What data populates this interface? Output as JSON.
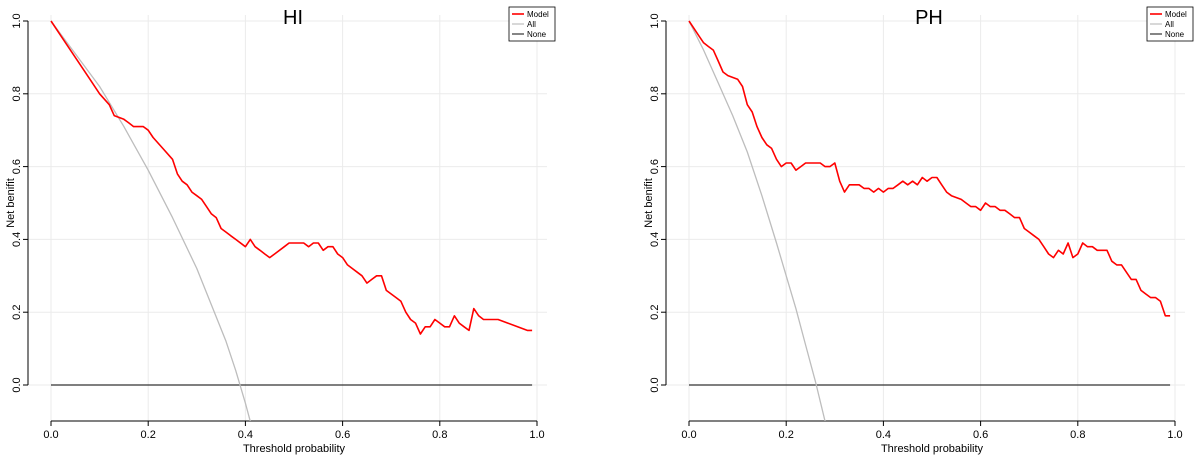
{
  "chart_data": [
    {
      "type": "line",
      "title": "HI",
      "xlabel": "Threshold probability",
      "ylabel": "Net benifit",
      "xlim": [
        0,
        1
      ],
      "ylim": [
        -0.05,
        1.0
      ],
      "xticks": [
        "0.0",
        "0.2",
        "0.4",
        "0.6",
        "0.8",
        "1.0"
      ],
      "yticks": [
        "0.0",
        "0.2",
        "0.4",
        "0.6",
        "0.8",
        "1.0"
      ],
      "grid": true,
      "legend": "top-right",
      "colors": {
        "Model": "#ff0000",
        "All": "#bdbdbd",
        "None": "#333333"
      },
      "series": [
        {
          "name": "Model",
          "x": [
            0.0,
            0.02,
            0.04,
            0.06,
            0.08,
            0.1,
            0.12,
            0.13,
            0.15,
            0.16,
            0.17,
            0.19,
            0.2,
            0.21,
            0.23,
            0.25,
            0.26,
            0.27,
            0.28,
            0.29,
            0.3,
            0.31,
            0.32,
            0.33,
            0.34,
            0.35,
            0.36,
            0.37,
            0.38,
            0.4,
            0.41,
            0.42,
            0.43,
            0.44,
            0.45,
            0.46,
            0.48,
            0.49,
            0.5,
            0.52,
            0.53,
            0.54,
            0.55,
            0.56,
            0.57,
            0.58,
            0.59,
            0.6,
            0.61,
            0.62,
            0.63,
            0.64,
            0.65,
            0.66,
            0.67,
            0.68,
            0.69,
            0.7,
            0.71,
            0.72,
            0.73,
            0.74,
            0.75,
            0.76,
            0.77,
            0.78,
            0.79,
            0.8,
            0.81,
            0.82,
            0.83,
            0.84,
            0.85,
            0.86,
            0.87,
            0.88,
            0.89,
            0.9,
            0.92,
            0.94,
            0.96,
            0.98,
            0.99
          ],
          "y": [
            1.0,
            0.96,
            0.92,
            0.88,
            0.84,
            0.8,
            0.77,
            0.74,
            0.73,
            0.72,
            0.71,
            0.71,
            0.7,
            0.68,
            0.65,
            0.62,
            0.58,
            0.56,
            0.55,
            0.53,
            0.52,
            0.51,
            0.49,
            0.47,
            0.46,
            0.43,
            0.42,
            0.41,
            0.4,
            0.38,
            0.4,
            0.38,
            0.37,
            0.36,
            0.35,
            0.36,
            0.38,
            0.39,
            0.39,
            0.39,
            0.38,
            0.39,
            0.39,
            0.37,
            0.38,
            0.38,
            0.36,
            0.35,
            0.33,
            0.32,
            0.31,
            0.3,
            0.28,
            0.29,
            0.3,
            0.3,
            0.26,
            0.25,
            0.24,
            0.23,
            0.2,
            0.18,
            0.17,
            0.14,
            0.16,
            0.16,
            0.18,
            0.17,
            0.16,
            0.16,
            0.19,
            0.17,
            0.16,
            0.15,
            0.21,
            0.19,
            0.18,
            0.18,
            0.18,
            0.17,
            0.16,
            0.15,
            0.15
          ]
        },
        {
          "name": "All",
          "x": [
            0.0,
            0.05,
            0.1,
            0.15,
            0.2,
            0.25,
            0.3,
            0.33,
            0.36,
            0.38,
            0.4,
            0.41
          ],
          "y": [
            1.0,
            0.91,
            0.82,
            0.71,
            0.59,
            0.46,
            0.32,
            0.22,
            0.12,
            0.04,
            -0.05,
            -0.1
          ]
        },
        {
          "name": "None",
          "x": [
            0.0,
            0.99
          ],
          "y": [
            0.0,
            0.0
          ]
        }
      ]
    },
    {
      "type": "line",
      "title": "PH",
      "xlabel": "Threshold probability",
      "ylabel": "Net benifit",
      "xlim": [
        0,
        1
      ],
      "ylim": [
        -0.05,
        1.0
      ],
      "xticks": [
        "0.0",
        "0.2",
        "0.4",
        "0.6",
        "0.8",
        "1.0"
      ],
      "yticks": [
        "0.0",
        "0.2",
        "0.4",
        "0.6",
        "0.8",
        "1.0"
      ],
      "grid": true,
      "legend": "top-right",
      "colors": {
        "Model": "#ff0000",
        "All": "#bdbdbd",
        "None": "#333333"
      },
      "series": [
        {
          "name": "Model",
          "x": [
            0.0,
            0.01,
            0.02,
            0.03,
            0.04,
            0.05,
            0.06,
            0.07,
            0.08,
            0.1,
            0.11,
            0.12,
            0.13,
            0.14,
            0.15,
            0.16,
            0.17,
            0.18,
            0.19,
            0.2,
            0.21,
            0.22,
            0.23,
            0.24,
            0.25,
            0.26,
            0.27,
            0.28,
            0.29,
            0.3,
            0.31,
            0.32,
            0.33,
            0.34,
            0.35,
            0.36,
            0.37,
            0.38,
            0.39,
            0.4,
            0.41,
            0.42,
            0.43,
            0.44,
            0.45,
            0.46,
            0.47,
            0.48,
            0.49,
            0.5,
            0.51,
            0.52,
            0.53,
            0.54,
            0.56,
            0.57,
            0.58,
            0.59,
            0.6,
            0.61,
            0.62,
            0.63,
            0.64,
            0.65,
            0.66,
            0.67,
            0.68,
            0.69,
            0.7,
            0.71,
            0.72,
            0.73,
            0.74,
            0.75,
            0.76,
            0.77,
            0.78,
            0.79,
            0.8,
            0.81,
            0.82,
            0.83,
            0.84,
            0.85,
            0.86,
            0.87,
            0.88,
            0.89,
            0.9,
            0.91,
            0.92,
            0.93,
            0.94,
            0.95,
            0.96,
            0.97,
            0.98,
            0.99
          ],
          "y": [
            1.0,
            0.98,
            0.96,
            0.94,
            0.93,
            0.92,
            0.89,
            0.86,
            0.85,
            0.84,
            0.82,
            0.77,
            0.75,
            0.71,
            0.68,
            0.66,
            0.65,
            0.62,
            0.6,
            0.61,
            0.61,
            0.59,
            0.6,
            0.61,
            0.61,
            0.61,
            0.61,
            0.6,
            0.6,
            0.61,
            0.56,
            0.53,
            0.55,
            0.55,
            0.55,
            0.54,
            0.54,
            0.53,
            0.54,
            0.53,
            0.54,
            0.54,
            0.55,
            0.56,
            0.55,
            0.56,
            0.55,
            0.57,
            0.56,
            0.57,
            0.57,
            0.55,
            0.53,
            0.52,
            0.51,
            0.5,
            0.49,
            0.49,
            0.48,
            0.5,
            0.49,
            0.49,
            0.48,
            0.48,
            0.47,
            0.46,
            0.46,
            0.43,
            0.42,
            0.41,
            0.4,
            0.38,
            0.36,
            0.35,
            0.37,
            0.36,
            0.39,
            0.35,
            0.36,
            0.39,
            0.38,
            0.38,
            0.37,
            0.37,
            0.37,
            0.34,
            0.33,
            0.33,
            0.31,
            0.29,
            0.29,
            0.26,
            0.25,
            0.24,
            0.24,
            0.23,
            0.19,
            0.19
          ]
        },
        {
          "name": "All",
          "x": [
            0.0,
            0.03,
            0.06,
            0.09,
            0.12,
            0.15,
            0.18,
            0.2,
            0.22,
            0.24,
            0.26,
            0.28,
            0.29
          ],
          "y": [
            1.0,
            0.92,
            0.83,
            0.74,
            0.64,
            0.52,
            0.39,
            0.3,
            0.21,
            0.11,
            0.01,
            -0.1,
            -0.16
          ]
        },
        {
          "name": "None",
          "x": [
            0.0,
            0.99
          ],
          "y": [
            0.0,
            0.0
          ]
        }
      ]
    }
  ]
}
